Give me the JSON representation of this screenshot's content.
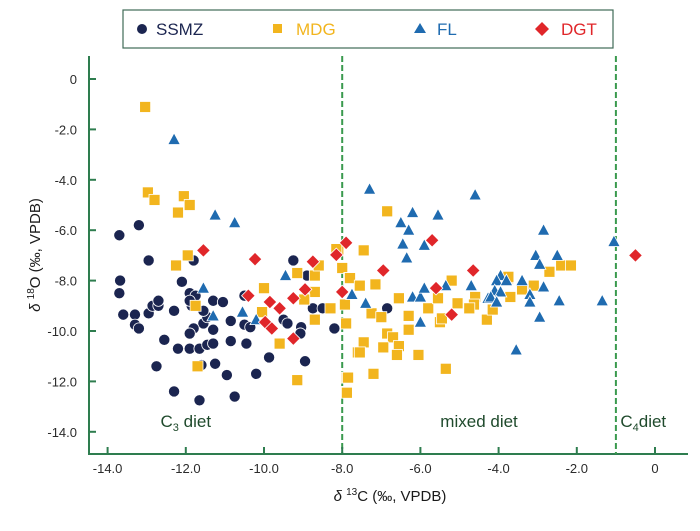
{
  "chart_data": {
    "type": "scatter",
    "title": "",
    "xlabel": "δ 13C (‰, VPDB)",
    "xlabel_parts": {
      "prefix": "δ ",
      "sup": "13",
      "suffix": "C (‰, VPDB)"
    },
    "ylabel": "δ 18O (‰, VPDB)",
    "ylabel_parts": {
      "prefix": "δ ",
      "sup": "18",
      "suffix": "O (‰, VPDB)"
    },
    "xlim": [
      -14.5,
      0.8
    ],
    "ylim": [
      -14.9,
      0.9
    ],
    "xticks": [
      -14,
      -12,
      -10,
      -8,
      -6,
      -4,
      -2,
      0
    ],
    "xtick_labels": [
      "-14.0",
      "-12.0",
      "-10.0",
      "-8.0",
      "-6.0",
      "-4.0",
      "-2.0",
      "0"
    ],
    "yticks": [
      0,
      -2,
      -4,
      -6,
      -8,
      -10,
      -12,
      -14
    ],
    "ytick_labels": [
      "0",
      "-2.0",
      "-4.0",
      "-6.0",
      "-8.0",
      "-10.0",
      "-12.0",
      "-14.0"
    ],
    "grid": false,
    "legend_position": "top",
    "reference_lines": [
      {
        "axis": "x",
        "value": -8.0,
        "style": "dashed",
        "color": "#3a9a4e"
      },
      {
        "axis": "x",
        "value": -1.0,
        "style": "dashed",
        "color": "#3a9a4e"
      }
    ],
    "region_labels": [
      {
        "text": "C",
        "sub": "3",
        "suffix": " diet",
        "x": -12.0,
        "y": -13.8
      },
      {
        "text": "mixed diet",
        "sub": "",
        "suffix": "",
        "x": -4.5,
        "y": -13.8
      },
      {
        "text": "C",
        "sub": "4",
        "suffix": "diet",
        "x": -0.3,
        "y": -13.8
      }
    ],
    "series": [
      {
        "name": "SSMZ",
        "marker": "circle",
        "color": "#1b2550",
        "points": [
          [
            -13.2,
            -5.8
          ],
          [
            -13.7,
            -6.2
          ],
          [
            -12.95,
            -7.2
          ],
          [
            -11.8,
            -7.2
          ],
          [
            -13.68,
            -8.0
          ],
          [
            -13.7,
            -8.5
          ],
          [
            -13.6,
            -9.35
          ],
          [
            -13.3,
            -9.35
          ],
          [
            -13.3,
            -9.75
          ],
          [
            -13.2,
            -9.9
          ],
          [
            -12.95,
            -9.3
          ],
          [
            -12.85,
            -9.0
          ],
          [
            -12.7,
            -9.0
          ],
          [
            -12.7,
            -8.8
          ],
          [
            -12.3,
            -9.2
          ],
          [
            -12.1,
            -8.05
          ],
          [
            -11.9,
            -8.5
          ],
          [
            -11.85,
            -9.0
          ],
          [
            -11.75,
            -8.6
          ],
          [
            -11.9,
            -8.8
          ],
          [
            -11.55,
            -9.7
          ],
          [
            -11.8,
            -9.9
          ],
          [
            -11.9,
            -10.1
          ],
          [
            -11.45,
            -9.45
          ],
          [
            -11.55,
            -9.2
          ],
          [
            -11.3,
            -8.8
          ],
          [
            -11.05,
            -8.85
          ],
          [
            -10.85,
            -9.6
          ],
          [
            -12.55,
            -10.35
          ],
          [
            -12.2,
            -10.7
          ],
          [
            -11.9,
            -10.7
          ],
          [
            -11.65,
            -10.7
          ],
          [
            -11.45,
            -10.55
          ],
          [
            -11.3,
            -10.5
          ],
          [
            -11.3,
            -9.95
          ],
          [
            -11.6,
            -11.35
          ],
          [
            -11.25,
            -11.3
          ],
          [
            -10.95,
            -11.75
          ],
          [
            -10.2,
            -11.7
          ],
          [
            -12.75,
            -11.4
          ],
          [
            -12.3,
            -12.4
          ],
          [
            -11.65,
            -12.75
          ],
          [
            -10.75,
            -12.6
          ],
          [
            -10.85,
            -10.4
          ],
          [
            -9.25,
            -7.2
          ],
          [
            -8.9,
            -7.8
          ],
          [
            -8.75,
            -9.1
          ],
          [
            -8.5,
            -9.1
          ],
          [
            -10.5,
            -8.6
          ],
          [
            -10.5,
            -9.75
          ],
          [
            -10.35,
            -9.85
          ],
          [
            -10.45,
            -10.5
          ],
          [
            -9.87,
            -11.05
          ],
          [
            -9.5,
            -9.55
          ],
          [
            -9.4,
            -9.7
          ],
          [
            -9.05,
            -9.85
          ],
          [
            -9.07,
            -10.1
          ],
          [
            -8.95,
            -11.2
          ],
          [
            -8.2,
            -9.9
          ],
          [
            -6.85,
            -9.1
          ]
        ]
      },
      {
        "name": "MDG",
        "marker": "square",
        "color": "#f2b51e",
        "points": [
          [
            -13.04,
            -1.11
          ],
          [
            -12.97,
            -4.5
          ],
          [
            -12.8,
            -4.8
          ],
          [
            -12.05,
            -4.65
          ],
          [
            -11.9,
            -5.0
          ],
          [
            -12.2,
            -5.3
          ],
          [
            -11.95,
            -7.0
          ],
          [
            -12.25,
            -7.4
          ],
          [
            -11.75,
            -9.0
          ],
          [
            -11.7,
            -11.4
          ],
          [
            -10.0,
            -8.3
          ],
          [
            -10.05,
            -9.25
          ],
          [
            -9.6,
            -10.5
          ],
          [
            -9.15,
            -7.7
          ],
          [
            -8.7,
            -7.8
          ],
          [
            -8.6,
            -7.4
          ],
          [
            -8.7,
            -8.45
          ],
          [
            -8.97,
            -8.75
          ],
          [
            -8.7,
            -9.55
          ],
          [
            -8.3,
            -9.1
          ],
          [
            -9.15,
            -11.95
          ],
          [
            -8.1,
            -6.8
          ],
          [
            -8.0,
            -7.5
          ],
          [
            -7.93,
            -8.95
          ],
          [
            -7.88,
            -9.7
          ],
          [
            -7.82,
            -7.9
          ],
          [
            -7.88,
            -11.85
          ],
          [
            -7.88,
            -12.45
          ],
          [
            -7.6,
            -10.85
          ],
          [
            -8.15,
            -6.75
          ],
          [
            -6.85,
            -5.25
          ],
          [
            -7.45,
            -6.8
          ],
          [
            -7.8,
            -7.9
          ],
          [
            -7.55,
            -8.2
          ],
          [
            -7.15,
            -8.15
          ],
          [
            -6.55,
            -8.7
          ],
          [
            -7.25,
            -9.3
          ],
          [
            -7.0,
            -9.45
          ],
          [
            -6.3,
            -9.4
          ],
          [
            -6.3,
            -9.95
          ],
          [
            -5.8,
            -9.1
          ],
          [
            -5.55,
            -8.7
          ],
          [
            -5.2,
            -8.0
          ],
          [
            -5.05,
            -8.9
          ],
          [
            -5.5,
            -9.65
          ],
          [
            -5.45,
            -9.5
          ],
          [
            -4.6,
            -8.65
          ],
          [
            -4.63,
            -8.95
          ],
          [
            -4.3,
            -9.55
          ],
          [
            -7.9,
            -9.7
          ],
          [
            -6.85,
            -10.1
          ],
          [
            -6.7,
            -10.25
          ],
          [
            -7.45,
            -10.45
          ],
          [
            -7.55,
            -10.85
          ],
          [
            -6.95,
            -10.65
          ],
          [
            -6.55,
            -10.6
          ],
          [
            -6.6,
            -10.95
          ],
          [
            -6.05,
            -10.95
          ],
          [
            -7.2,
            -11.7
          ],
          [
            -5.35,
            -11.5
          ],
          [
            -7.85,
            -11.85
          ],
          [
            -3.75,
            -7.9
          ],
          [
            -2.7,
            -7.65
          ],
          [
            -2.4,
            -7.4
          ],
          [
            -2.15,
            -7.4
          ],
          [
            -3.1,
            -8.2
          ],
          [
            -3.4,
            -8.35
          ],
          [
            -3.7,
            -8.65
          ],
          [
            -4.15,
            -9.15
          ],
          [
            -4.75,
            -9.1
          ],
          [
            -3.75,
            -7.85
          ]
        ]
      },
      {
        "name": "FL",
        "marker": "triangle",
        "color": "#1f6bb0",
        "points": [
          [
            -12.3,
            -2.4
          ],
          [
            -11.25,
            -5.4
          ],
          [
            -10.75,
            -5.7
          ],
          [
            -11.55,
            -8.3
          ],
          [
            -11.3,
            -9.4
          ],
          [
            -10.55,
            -9.25
          ],
          [
            -9.45,
            -7.8
          ],
          [
            -7.75,
            -8.55
          ],
          [
            -10.2,
            -9.55
          ],
          [
            -7.3,
            -4.37
          ],
          [
            -4.6,
            -4.6
          ],
          [
            -6.2,
            -5.3
          ],
          [
            -5.55,
            -5.4
          ],
          [
            -6.5,
            -5.7
          ],
          [
            -6.3,
            -6.0
          ],
          [
            -6.45,
            -6.55
          ],
          [
            -5.9,
            -6.6
          ],
          [
            -6.35,
            -7.1
          ],
          [
            -7.4,
            -8.9
          ],
          [
            -6.2,
            -8.65
          ],
          [
            -6.0,
            -8.65
          ],
          [
            -5.9,
            -8.3
          ],
          [
            -5.35,
            -8.2
          ],
          [
            -4.7,
            -8.2
          ],
          [
            -6.0,
            -9.65
          ],
          [
            -4.27,
            -8.7
          ],
          [
            -2.85,
            -6.0
          ],
          [
            -1.05,
            -6.45
          ],
          [
            -3.05,
            -7.0
          ],
          [
            -2.5,
            -7.0
          ],
          [
            -2.95,
            -7.35
          ],
          [
            -3.95,
            -7.8
          ],
          [
            -4.05,
            -8.0
          ],
          [
            -3.8,
            -8.0
          ],
          [
            -3.4,
            -8.0
          ],
          [
            -2.85,
            -8.25
          ],
          [
            -4.1,
            -8.4
          ],
          [
            -3.95,
            -8.45
          ],
          [
            -3.2,
            -8.55
          ],
          [
            -4.2,
            -8.65
          ],
          [
            -4.05,
            -8.85
          ],
          [
            -3.2,
            -8.85
          ],
          [
            -2.45,
            -8.8
          ],
          [
            -1.35,
            -8.8
          ],
          [
            -2.95,
            -9.45
          ],
          [
            -3.55,
            -10.75
          ]
        ]
      },
      {
        "name": "DGT",
        "marker": "diamond",
        "color": "#e0262a",
        "points": [
          [
            -11.55,
            -6.8
          ],
          [
            -10.4,
            -8.6
          ],
          [
            -10.23,
            -7.15
          ],
          [
            -8.75,
            -7.25
          ],
          [
            -7.9,
            -6.5
          ],
          [
            -8.15,
            -6.98
          ],
          [
            -8.95,
            -8.35
          ],
          [
            -9.25,
            -8.7
          ],
          [
            -9.6,
            -9.1
          ],
          [
            -9.85,
            -8.85
          ],
          [
            -9.97,
            -9.65
          ],
          [
            -9.8,
            -9.9
          ],
          [
            -9.25,
            -10.3
          ],
          [
            -8.0,
            -8.45
          ],
          [
            -6.95,
            -7.6
          ],
          [
            -5.7,
            -6.4
          ],
          [
            -4.65,
            -7.6
          ],
          [
            -5.6,
            -8.3
          ],
          [
            -5.2,
            -9.35
          ],
          [
            -0.5,
            -7.0
          ]
        ]
      }
    ]
  },
  "legend": {
    "items": [
      {
        "label": "SSMZ",
        "marker": "circle",
        "color": "#1b2550",
        "text_color": "#1b2550"
      },
      {
        "label": "MDG",
        "marker": "square",
        "color": "#f2b51e",
        "text_color": "#f2b51e"
      },
      {
        "label": "FL",
        "marker": "triangle",
        "color": "#1f6bb0",
        "text_color": "#1f6bb0"
      },
      {
        "label": "DGT",
        "marker": "diamond",
        "color": "#e0262a",
        "text_color": "#e0262a"
      }
    ]
  },
  "colors": {
    "axis": "#2e7d4f",
    "legend_border": "#3f6b58",
    "region_label": "#1f4a2c"
  }
}
